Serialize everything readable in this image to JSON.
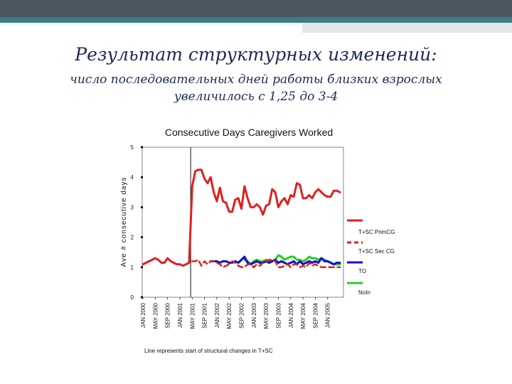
{
  "slide": {
    "title": "Результат структурных изменений:",
    "subtitle_line1": "число последовательных дней работы близких взрослых",
    "subtitle_line2": "увеличилось с 1,25 до 3-4"
  },
  "chart_data": {
    "type": "line",
    "title": "Consecutive Days Caregivers Worked",
    "ylabel": "Ave # consecutive days",
    "xlabel": "",
    "ylim": [
      0,
      5
    ],
    "yticks": [
      "0",
      "1",
      "2",
      "3",
      "4",
      "5"
    ],
    "x_tick_labels": [
      "JAN 2000",
      "MAY 2000",
      "SEP 2000",
      "JAN 2001",
      "MAY 2001",
      "SEP 2001",
      "JAN 2002",
      "MAY 2002",
      "SEP 2002",
      "JAN 2003",
      "MAY 2003",
      "SEP 2003",
      "JAN 2004",
      "MAY 2004",
      "SEP 2004",
      "JAN 2005"
    ],
    "n_points": 65,
    "structural_change_index": 16,
    "annotation": "Line represents start of structural changes in T+SC",
    "series": [
      {
        "name": "T+SC PrimCG",
        "color": "#e02020",
        "dash": "solid",
        "start_index": 0,
        "values": [
          1.1,
          1.15,
          1.2,
          1.25,
          1.3,
          1.25,
          1.15,
          1.15,
          1.3,
          1.2,
          1.15,
          1.1,
          1.1,
          1.05,
          1.1,
          1.15,
          3.7,
          4.2,
          4.25,
          4.25,
          3.95,
          3.8,
          4.0,
          3.5,
          3.2,
          3.65,
          3.2,
          3.15,
          2.85,
          2.85,
          3.25,
          3.3,
          2.95,
          3.7,
          3.3,
          3.0,
          3.0,
          3.1,
          3.0,
          2.75,
          3.05,
          3.1,
          3.6,
          3.5,
          3.0,
          3.2,
          3.3,
          3.1,
          3.4,
          3.35,
          3.8,
          3.75,
          3.3,
          3.3,
          3.4,
          3.3,
          3.5,
          3.6,
          3.5,
          3.4,
          3.35,
          3.35,
          3.55,
          3.55,
          3.5
        ]
      },
      {
        "name": "T+SC Sec CG",
        "color": "#e02020",
        "dash": "dashed",
        "start_index": 16,
        "values": [
          1.2,
          1.2,
          1.25,
          1.05,
          1.2,
          1.1,
          1.2,
          1.2,
          1.15,
          1.1,
          1.0,
          1.05,
          1.1,
          1.2,
          1.15,
          1.05,
          1.0,
          1.0,
          1.1,
          1.1,
          1.0,
          1.1,
          1.05,
          1.15,
          1.2,
          1.25,
          1.25,
          1.2,
          1.0,
          1.0,
          1.05,
          1.1,
          1.0,
          1.1,
          1.1,
          1.0,
          1.05,
          1.0,
          1.15,
          1.05,
          1.1,
          1.05,
          1.0,
          1.0,
          1.0,
          1.0,
          1.0,
          1.0,
          1.0
        ]
      },
      {
        "name": "TO",
        "color": "#1010d0",
        "dash": "solid",
        "start_index": 22,
        "values": [
          1.2,
          1.2,
          1.2,
          1.15,
          1.2,
          1.2,
          1.15,
          1.15,
          1.2,
          1.15,
          1.25,
          1.35,
          1.15,
          1.1,
          1.15,
          1.2,
          1.15,
          1.15,
          1.2,
          1.15,
          1.2,
          1.25,
          1.15,
          1.2,
          1.15,
          1.1,
          1.15,
          1.2,
          1.1,
          1.2,
          1.1,
          1.15,
          1.2,
          1.15,
          1.2,
          1.15,
          1.3,
          1.2,
          1.2,
          1.15,
          1.1,
          1.15,
          1.15
        ]
      },
      {
        "name": "NoIn",
        "color": "#20d020",
        "dash": "solid",
        "start_index": 33,
        "values": [
          1.25,
          1.2,
          1.1,
          1.2,
          1.25,
          1.2,
          1.2,
          1.25,
          1.2,
          1.2,
          1.25,
          1.4,
          1.35,
          1.25,
          1.3,
          1.35,
          1.35,
          1.25,
          1.25,
          1.2,
          1.25,
          1.35,
          1.3,
          1.3,
          1.25,
          1.3,
          1.25,
          1.2,
          1.15,
          1.1,
          1.1,
          1.1
        ]
      }
    ],
    "legend": {
      "position": "right",
      "entries": [
        "T+SC PrimCG",
        "T+SC Sec CG",
        "TO",
        "NoIn"
      ]
    }
  }
}
